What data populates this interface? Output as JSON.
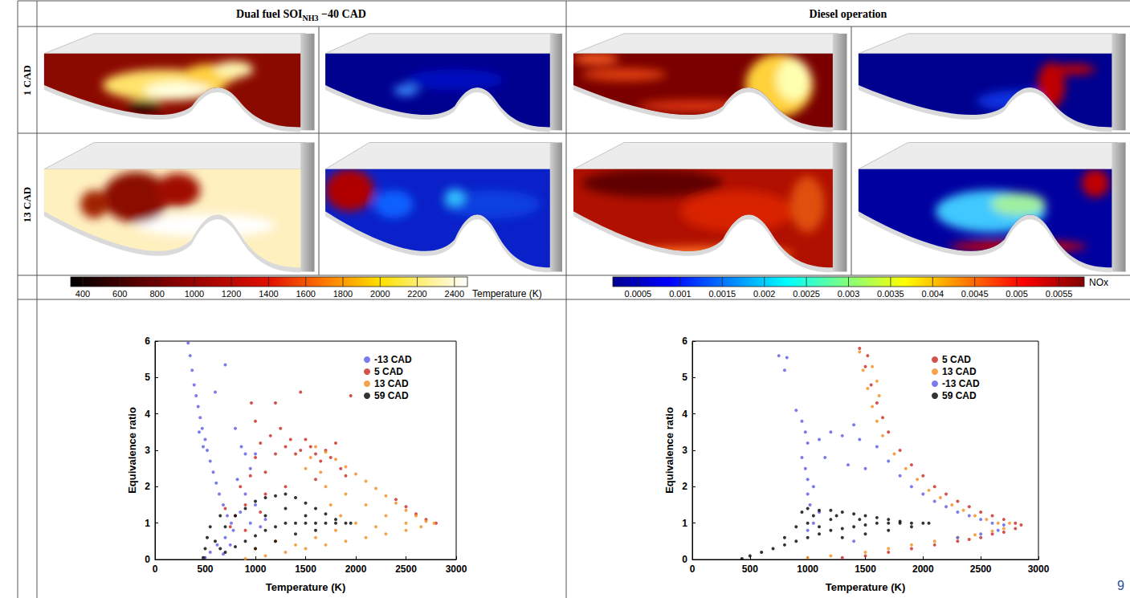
{
  "column_heads": [
    {
      "text": "Dual fuel SOI",
      "subscript": "NH3",
      "after": " −40 CAD"
    },
    {
      "text": "Diesel operation"
    }
  ],
  "row_heads": [
    "1 CAD",
    "13 CAD"
  ],
  "colorbars": [
    {
      "label": "Temperature (K)",
      "range": [
        335,
        2470
      ],
      "ticks": [
        400,
        600,
        800,
        1000,
        1200,
        1400,
        1600,
        1800,
        2000,
        2200,
        2400
      ]
    },
    {
      "label": "NOx",
      "range": [
        0.0002,
        0.0058
      ],
      "ticks": [
        0.0005,
        0.001,
        0.0015,
        0.002,
        0.0025,
        0.003,
        0.0035,
        0.004,
        0.0045,
        0.005,
        0.0055
      ]
    }
  ],
  "page_number": "9",
  "chart_data": [
    {
      "type": "scatter",
      "xlabel": "Temperature (K)",
      "ylabel": "Equivalence ratio",
      "xlim": [
        0,
        3000
      ],
      "ylim": [
        0,
        6
      ],
      "xticks": [
        0,
        500,
        1000,
        1500,
        2000,
        2500,
        3000
      ],
      "yticks": [
        0,
        1,
        2,
        3,
        4,
        5,
        6
      ],
      "grid": false,
      "legend": "upper right",
      "marker": "circle",
      "series": [
        {
          "name": "-13 CAD",
          "color": "#5a5ae6",
          "x": [
            330,
            350,
            370,
            390,
            410,
            430,
            450,
            470,
            500,
            520,
            550,
            580,
            610,
            640,
            680,
            720,
            760,
            700,
            600,
            800,
            860,
            900,
            950,
            1000,
            820,
            900,
            1000,
            850,
            950,
            780,
            700,
            620,
            550,
            500,
            680,
            750,
            1050,
            1100,
            480,
            440
          ],
          "values": [
            5.95,
            5.6,
            5.2,
            4.8,
            4.5,
            4.2,
            3.9,
            3.6,
            3.3,
            3.0,
            2.7,
            2.4,
            2.1,
            1.8,
            1.5,
            1.2,
            1.0,
            5.35,
            4.6,
            3.6,
            3.1,
            2.9,
            2.5,
            2.9,
            2.2,
            1.8,
            1.5,
            1.3,
            1.0,
            0.8,
            0.6,
            0.4,
            0.2,
            0.05,
            0.15,
            0.4,
            0.9,
            1.1,
            3.1,
            3.5
          ]
        },
        {
          "name": "5 CAD",
          "color": "#c8281e",
          "x": [
            850,
            900,
            950,
            1000,
            1050,
            1100,
            1150,
            1200,
            1250,
            1300,
            1350,
            1400,
            1450,
            1500,
            1550,
            1600,
            1650,
            1700,
            1750,
            1800,
            1850,
            1900,
            1950,
            1450,
            1200,
            1000,
            800,
            750,
            900,
            1100,
            1300,
            1600,
            700,
            1050,
            960,
            2400,
            2500,
            2600,
            2700,
            2800
          ],
          "values": [
            2.0,
            1.5,
            2.3,
            2.8,
            3.2,
            2.4,
            3.4,
            2.9,
            3.6,
            3.1,
            3.3,
            2.9,
            3.0,
            3.3,
            3.1,
            2.9,
            2.7,
            3.0,
            2.8,
            3.2,
            2.5,
            2.3,
            4.5,
            4.6,
            4.3,
            3.8,
            1.2,
            0.9,
            0.8,
            1.8,
            2.0,
            2.2,
            1.4,
            1.3,
            4.3,
            1.65,
            1.45,
            1.25,
            1.1,
            1.0
          ]
        },
        {
          "name": "13 CAD",
          "color": "#f28c1e",
          "x": [
            1600,
            1700,
            1800,
            1900,
            2000,
            2100,
            2200,
            2300,
            2400,
            2500,
            2600,
            2700,
            2780,
            900,
            1100,
            1300,
            1500,
            1700,
            1900,
            2100,
            2300,
            2500,
            2650,
            1700,
            1900,
            2100,
            2300,
            2500,
            2000,
            2200,
            1800,
            1600,
            1400,
            1550,
            1500,
            1650,
            1750,
            1850,
            1200,
            1000
          ],
          "values": [
            3.1,
            2.95,
            2.75,
            2.55,
            2.35,
            2.15,
            1.95,
            1.75,
            1.55,
            1.35,
            1.2,
            1.05,
            1.0,
            0.02,
            0.1,
            0.2,
            0.3,
            0.4,
            0.5,
            0.6,
            0.7,
            0.8,
            0.9,
            2.0,
            1.8,
            1.5,
            1.2,
            1.0,
            1.0,
            0.9,
            0.8,
            0.6,
            0.4,
            2.8,
            2.5,
            2.4,
            1.5,
            1.2,
            0.5,
            0.3
          ]
        },
        {
          "name": "59 CAD",
          "color": "#000000",
          "x": [
            480,
            500,
            520,
            550,
            600,
            650,
            700,
            800,
            900,
            1000,
            1100,
            1200,
            1300,
            1400,
            1500,
            1600,
            1700,
            1800,
            1900,
            1950,
            1000,
            1100,
            1200,
            1300,
            1400,
            1500,
            1600,
            1700,
            1800,
            900,
            800,
            700,
            1100,
            1300,
            1500,
            1200,
            1000,
            1400,
            1600,
            650
          ],
          "values": [
            0.05,
            0.3,
            0.6,
            0.9,
            0.5,
            0.3,
            0.2,
            0.35,
            0.5,
            0.65,
            0.8,
            0.9,
            1.0,
            1.0,
            1.0,
            1.0,
            1.0,
            1.0,
            1.0,
            1.0,
            1.6,
            1.7,
            1.75,
            1.8,
            1.7,
            1.55,
            1.4,
            1.25,
            1.1,
            1.4,
            1.2,
            0.9,
            1.2,
            1.4,
            1.2,
            0.5,
            0.3,
            0.7,
            0.8,
            1.2
          ]
        }
      ]
    },
    {
      "type": "scatter",
      "xlabel": "Temperature (K)",
      "ylabel": "Equivalence ratio",
      "xlim": [
        0,
        3000
      ],
      "ylim": [
        0,
        6
      ],
      "xticks": [
        0,
        500,
        1000,
        1500,
        2000,
        2500,
        3000
      ],
      "yticks": [
        0,
        1,
        2,
        3,
        4,
        5,
        6
      ],
      "grid": false,
      "legend": "upper right",
      "marker": "circle",
      "series": [
        {
          "name": "5 CAD",
          "color": "#c8281e",
          "x": [
            1450,
            1500,
            1550,
            1600,
            1650,
            1700,
            1800,
            1900,
            2000,
            2100,
            2200,
            2300,
            2400,
            2500,
            2600,
            2700,
            2800,
            2850,
            2800,
            2700,
            2600,
            2500,
            2400,
            2300,
            2100,
            1900,
            1700,
            1500,
            1300,
            1520
          ],
          "values": [
            5.8,
            5.3,
            4.8,
            4.3,
            3.9,
            3.5,
            3.0,
            2.6,
            2.3,
            2.0,
            1.8,
            1.6,
            1.45,
            1.3,
            1.2,
            1.1,
            1.0,
            0.95,
            0.85,
            0.75,
            0.7,
            0.6,
            0.55,
            0.5,
            0.4,
            0.3,
            0.2,
            0.1,
            0.05,
            5.6
          ]
        },
        {
          "name": "13 CAD",
          "color": "#f28c1e",
          "x": [
            1450,
            1480,
            1520,
            1560,
            1600,
            1650,
            1750,
            1850,
            1950,
            2050,
            2150,
            2250,
            2350,
            2450,
            2550,
            2650,
            2750,
            2700,
            2600,
            2450,
            2300,
            2100,
            1900,
            1700,
            1500,
            1200,
            1000,
            1600,
            1620,
            1560
          ],
          "values": [
            5.7,
            5.2,
            4.7,
            4.2,
            3.8,
            3.4,
            2.9,
            2.5,
            2.2,
            1.9,
            1.7,
            1.5,
            1.35,
            1.2,
            1.1,
            1.0,
            1.0,
            0.85,
            0.78,
            0.68,
            0.6,
            0.5,
            0.4,
            0.3,
            0.2,
            0.1,
            0.05,
            4.9,
            4.5,
            5.3
          ]
        },
        {
          "name": "-13 CAD",
          "color": "#5a5ae6",
          "x": [
            750,
            820,
            800,
            900,
            950,
            980,
            1000,
            950,
            980,
            1000,
            1050,
            1000,
            1020,
            1100,
            1150,
            1200,
            1300,
            1350,
            1400,
            1450,
            1500,
            1600,
            1700,
            1800,
            1900,
            2000,
            2100,
            2200,
            2300,
            2400,
            2500,
            2600,
            2700,
            2650,
            2500,
            2300,
            1100,
            1050,
            1000,
            1400
          ],
          "values": [
            5.6,
            5.55,
            5.2,
            4.1,
            3.8,
            3.5,
            3.2,
            2.8,
            2.5,
            2.2,
            2.0,
            1.8,
            1.5,
            1.3,
            2.8,
            3.5,
            3.4,
            2.6,
            3.7,
            3.3,
            2.5,
            3.1,
            2.7,
            2.3,
            2.0,
            1.8,
            1.6,
            1.45,
            1.3,
            1.2,
            1.1,
            1.0,
            0.95,
            0.8,
            0.7,
            0.6,
            3.3,
            1.0,
            0.8,
            0.5
          ]
        },
        {
          "name": "59 CAD",
          "color": "#000000",
          "x": [
            430,
            500,
            600,
            700,
            800,
            900,
            1000,
            1100,
            1200,
            1300,
            1400,
            1500,
            1600,
            1700,
            1800,
            1900,
            2000,
            2050,
            950,
            1000,
            1100,
            1200,
            1300,
            1400,
            1500,
            1600,
            1700,
            1800,
            1000,
            1100,
            1300,
            1500,
            1700,
            1900,
            1200,
            900,
            800,
            1050,
            1250,
            1450
          ],
          "values": [
            0.02,
            0.1,
            0.2,
            0.3,
            0.4,
            0.5,
            0.6,
            0.7,
            0.8,
            0.85,
            0.9,
            0.95,
            1.0,
            1.0,
            1.0,
            1.0,
            1.0,
            1.0,
            1.3,
            1.4,
            1.35,
            1.35,
            1.3,
            1.25,
            1.2,
            1.15,
            1.1,
            1.05,
            1.0,
            0.9,
            0.6,
            0.7,
            0.8,
            0.9,
            1.1,
            0.9,
            0.6,
            1.2,
            1.2,
            1.1
          ]
        }
      ]
    }
  ]
}
